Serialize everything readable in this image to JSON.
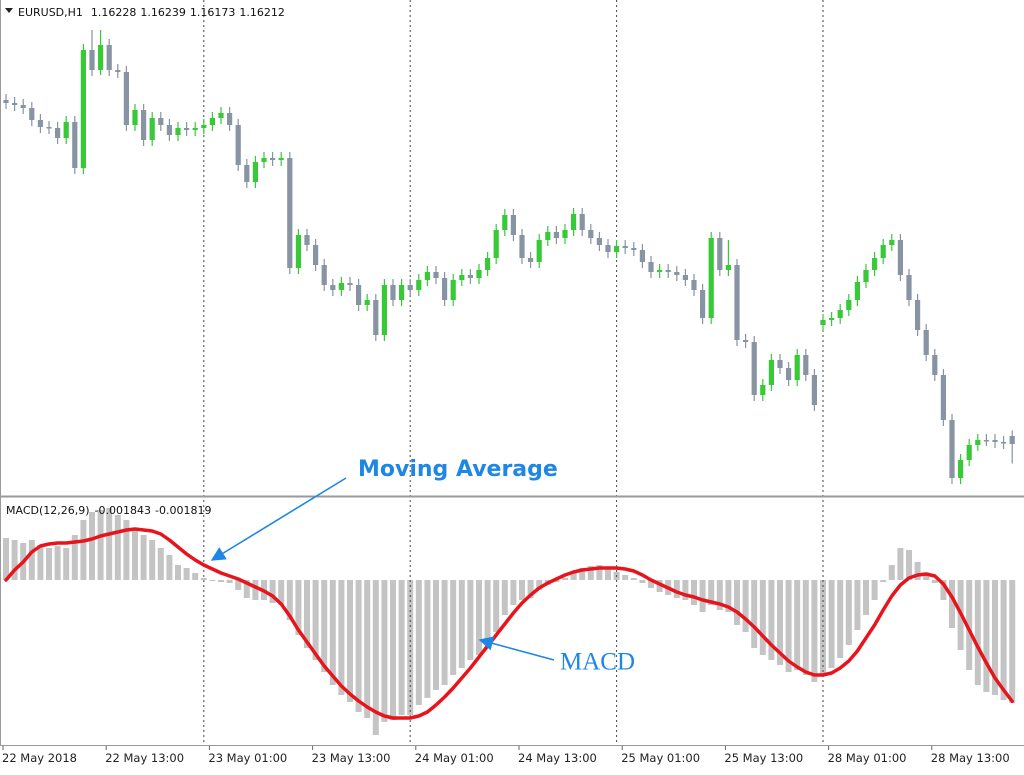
{
  "chart_data": [
    {
      "type": "candlestick",
      "title": "EURUSD,H1",
      "categories": [
        "22 May 2018",
        null,
        null,
        null,
        null,
        null,
        null,
        null,
        null,
        null,
        null,
        null,
        "22 May 13:00",
        null,
        null,
        null,
        null,
        null,
        null,
        null,
        null,
        null,
        null,
        null,
        "23 May 01:00",
        null,
        null,
        null,
        null,
        null,
        null,
        null,
        null,
        null,
        null,
        null,
        "23 May 13:00",
        null,
        null,
        null,
        null,
        null,
        null,
        null,
        null,
        null,
        null,
        null,
        "24 May 01:00",
        null,
        null,
        null,
        null,
        null,
        null,
        null,
        null,
        null,
        null,
        null,
        "24 May 13:00",
        null,
        null,
        null,
        null,
        null,
        null,
        null,
        null,
        null,
        null,
        null,
        "25 May 01:00",
        null,
        null,
        null,
        null,
        null,
        null,
        null,
        null,
        null,
        null,
        null,
        "25 May 13:00",
        null,
        null,
        null,
        null,
        null,
        null,
        null,
        null,
        null,
        null,
        null,
        "28 May 01:00",
        null,
        null,
        null,
        null,
        null,
        null,
        null,
        null,
        null,
        null,
        null,
        "28 May 13:00",
        null,
        null,
        null,
        null,
        null,
        null,
        null,
        null,
        null
      ],
      "open": [
        1.169,
        1.16894,
        1.1689,
        1.16884,
        1.1686,
        1.16846,
        1.16844,
        1.16824,
        1.16856,
        1.16764,
        1.17,
        1.1696,
        1.1701,
        1.1696,
        1.16956,
        1.1685,
        1.1688,
        1.1682,
        1.16864,
        1.1685,
        1.1683,
        1.16844,
        1.1684,
        1.16844,
        1.1685,
        1.16864,
        1.16874,
        1.1685,
        1.1677,
        1.16736,
        1.16776,
        1.16784,
        1.1678,
        1.16784,
        1.16564,
        1.1663,
        1.1661,
        1.1657,
        1.1653,
        1.1652,
        1.16534,
        1.1653,
        1.1649,
        1.165,
        1.1643,
        1.1653,
        1.165,
        1.1653,
        1.1652,
        1.1654,
        1.16556,
        1.16544,
        1.165,
        1.1654,
        1.1655,
        1.16544,
        1.1656,
        1.16584,
        1.1664,
        1.1667,
        1.1663,
        1.16584,
        1.16576,
        1.1662,
        1.16636,
        1.16624,
        1.1664,
        1.16672,
        1.1664,
        1.16624,
        1.1661,
        1.16596,
        1.16608,
        1.16604,
        1.166,
        1.16576,
        1.16556,
        1.1656,
        1.16556,
        1.1655,
        1.1654,
        1.1652,
        1.16464,
        1.16624,
        1.1656,
        1.1657,
        1.1642,
        1.16416,
        1.1631,
        1.1633,
        1.1638,
        1.16364,
        1.1634,
        1.1639,
        1.1635,
        1.1645,
        1.1646,
        1.16464,
        1.1648,
        1.165,
        1.16536,
        1.1656,
        1.16584,
        1.1661,
        1.1662,
        1.1655,
        1.165,
        1.1644,
        1.1639,
        1.1635,
        1.1626,
        1.16144,
        1.1618,
        1.1621,
        1.1622,
        1.1622,
        1.16216,
        1.16228
      ],
      "high": [
        1.16912,
        1.16906,
        1.16902,
        1.16896,
        1.16872,
        1.16858,
        1.16856,
        1.16868,
        1.16868,
        1.17012,
        1.1704,
        1.1704,
        1.17022,
        1.16972,
        1.16968,
        1.16892,
        1.16892,
        1.16876,
        1.16876,
        1.16862,
        1.16856,
        1.16856,
        1.16856,
        1.16862,
        1.16876,
        1.16886,
        1.16886,
        1.16862,
        1.16782,
        1.16788,
        1.16796,
        1.16796,
        1.16796,
        1.16796,
        1.16642,
        1.16642,
        1.16622,
        1.16582,
        1.16542,
        1.16546,
        1.16546,
        1.16542,
        1.16512,
        1.16512,
        1.16542,
        1.16542,
        1.16542,
        1.16542,
        1.16552,
        1.16568,
        1.16568,
        1.16556,
        1.16552,
        1.16562,
        1.16562,
        1.16572,
        1.16596,
        1.16652,
        1.16682,
        1.16682,
        1.16642,
        1.16596,
        1.16632,
        1.16648,
        1.16648,
        1.16652,
        1.16684,
        1.16684,
        1.16652,
        1.16636,
        1.16622,
        1.1662,
        1.1662,
        1.16616,
        1.16612,
        1.16588,
        1.16572,
        1.16572,
        1.16568,
        1.16562,
        1.16552,
        1.16532,
        1.16636,
        1.16636,
        1.1662,
        1.16582,
        1.16432,
        1.16428,
        1.16342,
        1.16392,
        1.16392,
        1.16376,
        1.16402,
        1.16402,
        1.16362,
        1.16472,
        1.16476,
        1.16492,
        1.16512,
        1.16548,
        1.16572,
        1.16596,
        1.16622,
        1.16632,
        1.16632,
        1.16562,
        1.16512,
        1.16452,
        1.16402,
        1.16362,
        1.16272,
        1.16192,
        1.16222,
        1.16232,
        1.16232,
        1.16232,
        1.16228,
        1.16239
      ],
      "low": [
        1.16882,
        1.16878,
        1.16872,
        1.16848,
        1.16834,
        1.16832,
        1.16812,
        1.16812,
        1.16752,
        1.16752,
        1.16948,
        1.1695,
        1.16948,
        1.16944,
        1.16838,
        1.16838,
        1.16808,
        1.16808,
        1.16838,
        1.16818,
        1.16818,
        1.16828,
        1.16828,
        1.16832,
        1.16838,
        1.16852,
        1.16838,
        1.16758,
        1.16724,
        1.16724,
        1.16764,
        1.16768,
        1.16768,
        1.16552,
        1.16552,
        1.16598,
        1.16558,
        1.16518,
        1.16508,
        1.16508,
        1.16518,
        1.16478,
        1.16478,
        1.16418,
        1.16418,
        1.16488,
        1.16488,
        1.16508,
        1.16508,
        1.16528,
        1.16532,
        1.16488,
        1.16488,
        1.16528,
        1.16532,
        1.16532,
        1.16548,
        1.16572,
        1.16628,
        1.16618,
        1.16572,
        1.16564,
        1.16564,
        1.16608,
        1.16612,
        1.16612,
        1.16628,
        1.16628,
        1.16612,
        1.16598,
        1.16584,
        1.16584,
        1.16592,
        1.16588,
        1.16564,
        1.16544,
        1.16544,
        1.16544,
        1.16538,
        1.16528,
        1.16508,
        1.16452,
        1.16452,
        1.16548,
        1.16548,
        1.16408,
        1.16404,
        1.16298,
        1.16298,
        1.16318,
        1.16352,
        1.16328,
        1.16328,
        1.16338,
        1.16278,
        1.16438,
        1.16448,
        1.16452,
        1.16468,
        1.16488,
        1.16524,
        1.16548,
        1.16572,
        1.16598,
        1.16538,
        1.16488,
        1.16428,
        1.16378,
        1.16338,
        1.16248,
        1.16132,
        1.16132,
        1.16168,
        1.16198,
        1.16208,
        1.16204,
        1.16202,
        1.16173
      ],
      "close": [
        1.16894,
        1.1689,
        1.16884,
        1.1686,
        1.16846,
        1.16844,
        1.16824,
        1.16856,
        1.16764,
        1.17,
        1.1696,
        1.1701,
        1.1696,
        1.16956,
        1.1685,
        1.1688,
        1.1682,
        1.16864,
        1.1685,
        1.1683,
        1.16844,
        1.1684,
        1.16844,
        1.1685,
        1.16864,
        1.16874,
        1.1685,
        1.1677,
        1.16736,
        1.16776,
        1.16784,
        1.1678,
        1.16784,
        1.16564,
        1.1663,
        1.1661,
        1.1657,
        1.1653,
        1.1652,
        1.16534,
        1.1653,
        1.1649,
        1.165,
        1.1643,
        1.1653,
        1.165,
        1.1653,
        1.1652,
        1.1654,
        1.16556,
        1.16544,
        1.165,
        1.1654,
        1.1655,
        1.16544,
        1.1656,
        1.16584,
        1.1664,
        1.1667,
        1.1663,
        1.16584,
        1.16576,
        1.1662,
        1.16636,
        1.16624,
        1.1664,
        1.16672,
        1.1664,
        1.16624,
        1.1661,
        1.16596,
        1.16608,
        1.16604,
        1.166,
        1.16576,
        1.16556,
        1.1656,
        1.16556,
        1.1655,
        1.1654,
        1.1652,
        1.16464,
        1.16624,
        1.1656,
        1.1657,
        1.1642,
        1.16416,
        1.1631,
        1.1633,
        1.1638,
        1.16364,
        1.1634,
        1.1639,
        1.1635,
        1.1629,
        1.1646,
        1.16464,
        1.1648,
        1.165,
        1.16536,
        1.1656,
        1.16584,
        1.1661,
        1.1662,
        1.1655,
        1.165,
        1.1644,
        1.1639,
        1.1635,
        1.1626,
        1.16144,
        1.1618,
        1.1621,
        1.1622,
        1.1622,
        1.16216,
        1.16214,
        1.16212
      ],
      "up_color": "#38c938",
      "down_color": "#8893a3",
      "ylim": [
        1.1611,
        1.171
      ]
    },
    {
      "type": "macd",
      "title": "MACD(12,26,9)",
      "series": [
        {
          "type": "bar",
          "color": "#c4c4c4",
          "values": [
            0.00063,
            0.0006,
            0.000555,
            0.0006,
            0.000525,
            0.00048,
            0.00051,
            0.00048,
            0.000675,
            0.0009,
            0.00102,
            0.00105,
            0.00108,
            0.000975,
            0.0009,
            0.00075,
            0.000675,
            0.0006,
            0.00048,
            0.000375,
            0.000225,
            0.00018,
            0.000105,
            3e-05,
            -1.5e-05,
            -3e-05,
            -4.5e-05,
            -0.00015,
            -0.00027,
            -0.0003,
            -0.0003,
            -0.000345,
            -0.000375,
            -0.0006,
            -0.000825,
            -0.00102,
            -0.0012,
            -0.00138,
            -0.001575,
            -0.001725,
            -0.00183,
            -0.00198,
            -0.00207,
            -0.002325,
            -0.00213,
            -0.0021,
            -0.002025,
            -0.002025,
            -0.001875,
            -0.00177,
            -0.00165,
            -0.001575,
            -0.001425,
            -0.00132,
            -0.0012,
            -0.001125,
            -0.00102,
            -0.00078,
            -0.000525,
            -0.000375,
            -0.0003,
            -0.00027,
            -0.00015,
            -7.5e-05,
            -3e-05,
            3e-05,
            0.00012,
            0.00018,
            0.00021,
            0.000225,
            0.00018,
            0.00012,
            7.5e-05,
            3e-05,
            -4.5e-05,
            -0.00012,
            -0.00018,
            -0.000225,
            -0.00027,
            -0.0003,
            -0.000375,
            -0.00048,
            -0.000375,
            -0.00045,
            -0.00048,
            -0.000675,
            -0.00078,
            -0.00102,
            -0.001125,
            -0.0012,
            -0.001275,
            -0.00138,
            -0.00135,
            -0.001425,
            -0.00153,
            -0.001425,
            -0.00132,
            -0.00117,
            -0.000975,
            -0.00075,
            -0.000525,
            -0.0003,
            -3e-05,
            0.000225,
            0.00048,
            0.00045,
            0.00027,
            7.5e-05,
            -4.5e-05,
            -0.0003,
            -0.00072,
            -0.00105,
            -0.00135,
            -0.001575,
            -0.00168,
            -0.001725,
            -0.0018,
            -0.001843
          ]
        },
        {
          "type": "line",
          "color": "#e8141c",
          "values": [
            0,
            0.00015,
            0.00027,
            0.00042,
            0.00051,
            0.00054,
            0.000555,
            0.000555,
            0.00057,
            0.000585,
            0.000615,
            0.00066,
            0.00069,
            0.00072,
            0.00075,
            0.000765,
            0.00075,
            0.000735,
            0.00069,
            0.0006,
            0.000495,
            0.00039,
            0.0003,
            0.000225,
            0.000165,
            0.000105,
            6e-05,
            1.5e-05,
            -4.5e-05,
            -0.000105,
            -0.000165,
            -0.00024,
            -0.00036,
            -0.00054,
            -0.00075,
            -0.00093,
            -0.00111,
            -0.00129,
            -0.00144,
            -0.00159,
            -0.00171,
            -0.001815,
            -0.001905,
            -0.00198,
            -0.00204,
            -0.00207,
            -0.00207,
            -0.00207,
            -0.00204,
            -0.00198,
            -0.001875,
            -0.001755,
            -0.00162,
            -0.00147,
            -0.00132,
            -0.001155,
            -0.00099,
            -0.000825,
            -0.00066,
            -0.000495,
            -0.000345,
            -0.000225,
            -0.00012,
            -4.5e-05,
            1.5e-05,
            7.5e-05,
            0.00012,
            0.00015,
            0.000165,
            0.00018,
            0.00018,
            0.00018,
            0.000165,
            0.000135,
            7.5e-05,
            0,
            -6e-05,
            -0.00012,
            -0.00018,
            -0.000225,
            -0.000255,
            -0.0003,
            -0.00033,
            -0.00036,
            -0.000405,
            -0.00048,
            -0.000585,
            -0.000705,
            -0.00084,
            -0.000975,
            -0.001095,
            -0.001215,
            -0.001305,
            -0.00138,
            -0.001425,
            -0.001425,
            -0.001395,
            -0.00132,
            -0.001215,
            -0.001065,
            -0.00087,
            -0.000675,
            -0.00045,
            -0.00024,
            -7.5e-05,
            3e-05,
            7.5e-05,
            9e-05,
            6e-05,
            -6e-05,
            -0.000255,
            -0.000495,
            -0.00075,
            -0.001005,
            -0.001245,
            -0.00147,
            -0.00165,
            -0.001819
          ]
        }
      ],
      "annotations": [
        "Moving Average",
        "MACD"
      ],
      "ylim": [
        -0.002475,
        0.001215
      ]
    }
  ]
}
